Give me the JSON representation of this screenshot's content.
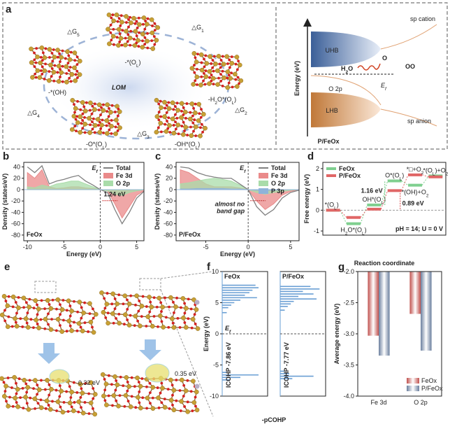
{
  "panel_labels": [
    "a",
    "b",
    "c",
    "d",
    "e",
    "f",
    "g"
  ],
  "scheme": {
    "cycle_steps": [
      [
        "△G",
        "1"
      ],
      [
        "△G",
        "2"
      ],
      [
        "△G",
        "3"
      ],
      [
        "△G",
        "4"
      ],
      [
        "△G",
        "5"
      ]
    ],
    "intermediates": [
      [
        "-*(O",
        "L",
        ")"
      ],
      [
        "-H",
        "2",
        "O*(O",
        "L",
        ")"
      ],
      [
        "-OH*(O",
        "L",
        ")"
      ],
      [
        "-O*(O",
        "L",
        ")"
      ],
      "-*(OH)"
    ],
    "center_label": "LOM",
    "band": {
      "axis_label": "Energy (eV)",
      "top": "sp cation",
      "uhb": "UHB",
      "o2p": "O 2p",
      "lhb": "LHB",
      "bottom": "sp anion",
      "fermi": [
        "E",
        "f"
      ],
      "water": [
        "H",
        "2",
        "O"
      ],
      "oxygen": "O",
      "dioxygen": "OO",
      "material": "P/FeOx"
    }
  },
  "structures": {
    "barriers": [
      "0.32 eV",
      "0.35 eV"
    ]
  },
  "chart_data": [
    {
      "type": "dos",
      "title": "FeOx",
      "xlabel": "Energy (eV)",
      "ylabel": "Density (states/eV)",
      "fermi_label": [
        "E",
        "f"
      ],
      "annotation_lines": [
        "1.24 eV"
      ],
      "annotation_color": "#d03030",
      "x": [
        -10,
        -9,
        -8,
        -7,
        -6,
        -5,
        -4,
        -3,
        -2,
        -1,
        0,
        1,
        2,
        3,
        4,
        5,
        6
      ],
      "xlim": [
        -10.5,
        6
      ],
      "xticks": [
        -10,
        -5,
        0,
        5
      ],
      "ylim": [
        -90,
        48
      ],
      "yticks": [
        -80,
        -60,
        -40,
        -20,
        0,
        20,
        40
      ],
      "series": [
        {
          "name": "Total",
          "style": "line",
          "color": "#808080",
          "values": [
            40,
            30,
            42,
            10,
            15,
            18,
            22,
            25,
            15,
            8,
            0,
            -5,
            -35,
            -60,
            -40,
            -15,
            -3
          ]
        },
        {
          "name": "Fe 3d",
          "style": "area",
          "color": "#ea8a8a",
          "values": [
            30,
            20,
            35,
            5,
            2,
            3,
            5,
            5,
            3,
            2,
            0,
            -2,
            -25,
            -50,
            -30,
            -10,
            -2
          ]
        },
        {
          "name": "O 2p",
          "style": "area",
          "color": "#a9dca9",
          "values": [
            5,
            3,
            8,
            5,
            10,
            12,
            15,
            15,
            10,
            5,
            0,
            -2,
            -8,
            -10,
            -5,
            -2,
            0
          ]
        }
      ]
    },
    {
      "type": "dos",
      "title": "P/FeOx",
      "xlabel": "Energy (eV)",
      "ylabel": "Density (states/eV)",
      "fermi_label": [
        "E",
        "f"
      ],
      "annotation_lines": [
        "almost no",
        "band gap"
      ],
      "annotation_color": "#c03030",
      "x": [
        -8,
        -7,
        -6,
        -5,
        -4,
        -3,
        -2,
        -1,
        0,
        1,
        2,
        3,
        4,
        5,
        6
      ],
      "xlim": [
        -8.5,
        6
      ],
      "xticks": [
        -5,
        0,
        5
      ],
      "ylim": [
        -90,
        48
      ],
      "yticks": [
        -80,
        -60,
        -40,
        -20,
        0,
        20,
        40
      ],
      "series": [
        {
          "name": "Total",
          "style": "line",
          "color": "#808080",
          "values": [
            40,
            38,
            30,
            25,
            22,
            20,
            20,
            10,
            0,
            -30,
            -45,
            -35,
            -15,
            -5,
            -1
          ]
        },
        {
          "name": "Fe 3d",
          "style": "area",
          "color": "#ea8a8a",
          "values": [
            35,
            30,
            20,
            10,
            5,
            5,
            5,
            3,
            0,
            -20,
            -35,
            -25,
            -10,
            -3,
            0
          ]
        },
        {
          "name": "O 2p",
          "style": "area",
          "color": "#a9dca9",
          "values": [
            10,
            12,
            15,
            18,
            20,
            18,
            15,
            8,
            0,
            -5,
            -8,
            -5,
            -3,
            -1,
            0
          ]
        },
        {
          "name": "P 3p",
          "style": "area",
          "color": "#8fb3d9",
          "values": [
            1,
            1,
            2,
            2,
            2,
            2,
            1,
            1,
            0,
            -1,
            -1,
            -1,
            0,
            0,
            0
          ]
        }
      ]
    },
    {
      "type": "free_energy",
      "xlabel": "Reaction coordinate",
      "ylabel": "Free energy (eV)",
      "conditions": "pH = 14; U = 0 V",
      "categories": [
        [
          "*(O",
          "L",
          ")"
        ],
        [
          "H",
          "2",
          "O*(O",
          "L",
          ")"
        ],
        [
          "OH*(O",
          "L",
          ")"
        ],
        [
          "O*(O",
          "L",
          ")"
        ],
        [
          "*□+O",
          "2"
        ],
        [
          "*(O",
          "L",
          ")+O",
          "2"
        ]
      ],
      "extra_label": [
        "*(OH)+O",
        "2"
      ],
      "gap_labels": [
        "1.16 eV",
        "0.89 eV"
      ],
      "ylim": [
        -1.2,
        2.3
      ],
      "yticks": [
        -1,
        0,
        1,
        2
      ],
      "series": [
        {
          "name": "FeOx",
          "color": "#7fcf8f",
          "values": [
            0,
            -0.65,
            0.25,
            1.41,
            1.2,
            1.65
          ]
        },
        {
          "name": "P/FeOx",
          "color": "#e06666",
          "values": [
            0,
            -0.35,
            0.05,
            0.94,
            1.7,
            1.6
          ]
        }
      ]
    },
    {
      "type": "cohp",
      "xlabel": "-pCOHP",
      "ylabel": "Energy (eV)",
      "fermi_label": [
        "E",
        "f"
      ],
      "xlim": [
        0,
        3
      ],
      "ylim": [
        -10,
        10
      ],
      "yticks": [
        -10,
        -5,
        0,
        5,
        10
      ],
      "series": [
        {
          "name": "FeOx",
          "color": "#6a9fd4",
          "icohp": "ICOHP -7.86 eV",
          "energies": [
            7.8,
            7.4,
            7,
            6.6,
            6.2,
            5.8,
            5.4,
            5,
            4.6,
            4.2,
            3.4,
            -6.2,
            -6.6,
            -7,
            -7.4
          ],
          "values": [
            2.2,
            2.4,
            2.0,
            1.8,
            1.5,
            2.3,
            1.2,
            0.8,
            0.6,
            0.4,
            0.3,
            0.3,
            2.4,
            1.2,
            0.5
          ]
        },
        {
          "name": "P/FeOx",
          "color": "#6a9fd4",
          "icohp": "ICOHP -7.77 eV",
          "energies": [
            7.6,
            7.2,
            6.8,
            6.4,
            6.0,
            5.6,
            5.2,
            4.8,
            4.4,
            3.8,
            -6.0,
            -6.4,
            -6.8,
            -7.2
          ],
          "values": [
            2.0,
            2.6,
            1.5,
            2.2,
            1.2,
            2.4,
            0.9,
            0.7,
            0.5,
            0.3,
            0.3,
            0.6,
            2.2,
            0.8
          ]
        }
      ]
    },
    {
      "type": "bar",
      "ylabel": "Average energy (eV)",
      "categories": [
        "Fe 3d",
        "O 2p"
      ],
      "legend": "bottom-right",
      "ylim": [
        -4,
        -2
      ],
      "yticks": [
        {
          "value": -4,
          "label": "-4.0"
        },
        {
          "value": -3.5,
          "label": "-3.5"
        },
        {
          "value": -3,
          "label": "-3.0"
        },
        {
          "value": -2.5,
          "label": "-2.5"
        },
        {
          "value": -2,
          "label": "-2.0"
        }
      ],
      "series": [
        {
          "name": "FeOx",
          "color": "#c0504d",
          "values": [
            -3.03,
            -2.68
          ]
        },
        {
          "name": "P/FeOx",
          "color": "#6b7f9e",
          "values": [
            -3.35,
            -3.27
          ]
        }
      ]
    }
  ]
}
